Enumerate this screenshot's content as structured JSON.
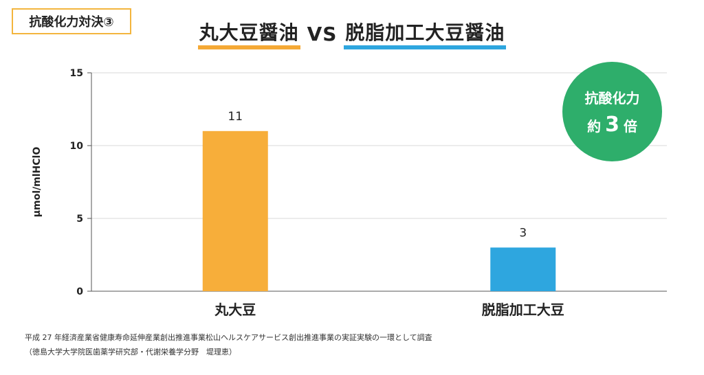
{
  "tag": "抗酸化力対決③",
  "headline": {
    "left": "丸大豆醤油",
    "vs": "VS",
    "right": "脱脂加工大豆醤油",
    "left_color": "#f5a935",
    "right_color": "#2ea6df"
  },
  "badge": {
    "line1": "抗酸化力",
    "prefix": "約",
    "number": "3",
    "suffix": "倍",
    "color": "#2eae6b"
  },
  "chart_data": {
    "type": "bar",
    "title": "",
    "xlabel": "",
    "ylabel": "μmol/mlHClO",
    "ylim": [
      0,
      15
    ],
    "yticks": [
      0,
      5,
      10,
      15
    ],
    "grid": true,
    "categories": [
      "丸大豆",
      "脱脂加工大豆"
    ],
    "values": [
      11,
      3
    ],
    "data_labels": [
      "11",
      "3"
    ],
    "colors": [
      "#f7ae3a",
      "#2ea6df"
    ]
  },
  "footnotes": [
    "平成 27 年経済産業省健康寿命延伸産業創出推進事業松山ヘルスケアサービス創出推進事業の実証実験の一環として調査",
    "（徳島大学大学院医歯薬学研究部・代謝栄養学分野　堤理恵）"
  ]
}
